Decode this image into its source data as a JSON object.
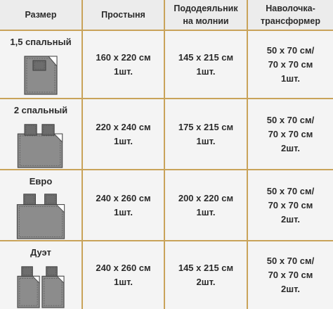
{
  "headers": [
    "Размер",
    "Простыня",
    "Пододеяльник\nна молнии",
    "Наволочка-\nтрансформер"
  ],
  "rows": [
    {
      "size": "1,5 спальный",
      "sheet": "160 х 220 см\n1шт.",
      "duvet": "145 х 215 см\n1шт.",
      "pillow": "50 х 70 см/\n70 х 70 см\n1шт."
    },
    {
      "size": "2 спальный",
      "sheet": "220 х 240 см\n1шт.",
      "duvet": "175 х 215 см\n1шт.",
      "pillow": "50 х 70 см/\n70 х 70 см\n2шт."
    },
    {
      "size": "Евро",
      "sheet": "240 х 260 см\n1шт.",
      "duvet": "200 х 220 см\n1шт.",
      "pillow": "50 х 70 см/\n70 х 70 см\n2шт."
    },
    {
      "size": "Дуэт",
      "sheet": "240 х 260 см\n1шт.",
      "duvet": "145 х 215 см\n2шт.",
      "pillow": "50 х 70 см/\n70 х 70 см\n2шт."
    }
  ],
  "colors": {
    "border": "#c9a35a",
    "cell_bg": "#f4f4f4",
    "header_bg": "#ececec"
  },
  "icons": [
    "single-bed-icon",
    "double-bed-icon",
    "euro-bed-icon",
    "duet-bed-icon"
  ]
}
